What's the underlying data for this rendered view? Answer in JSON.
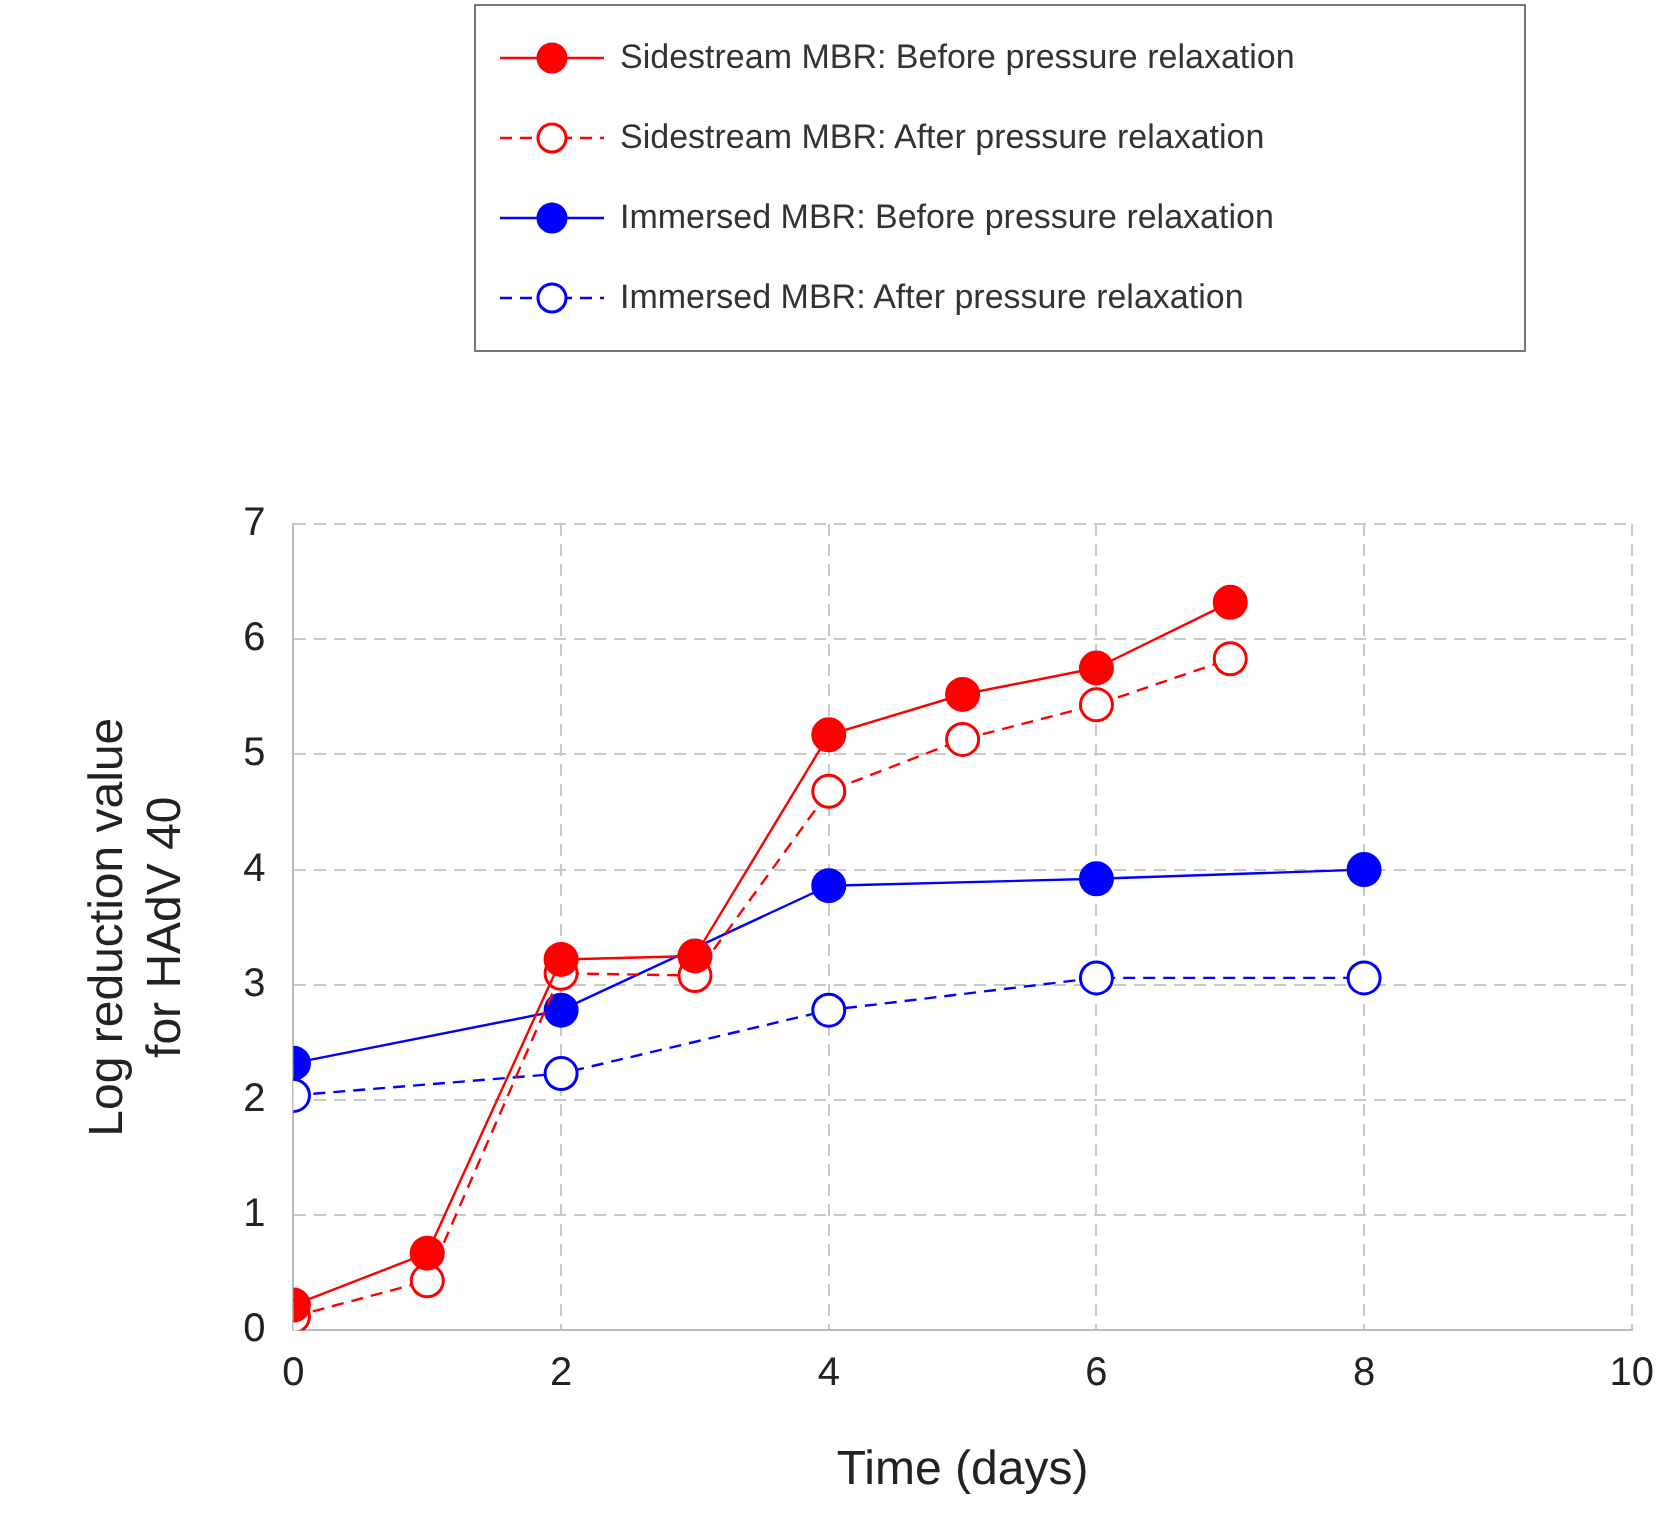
{
  "chart_data": {
    "type": "line",
    "xlabel": "Time (days)",
    "ylabel": "Log reduction value\nfor HAdV 40",
    "xlim": [
      0,
      10
    ],
    "xticks": [
      0,
      2,
      4,
      6,
      8,
      10
    ],
    "ylim": [
      0,
      7
    ],
    "yticks": [
      0,
      1,
      2,
      3,
      4,
      5,
      6,
      7
    ],
    "grid": true,
    "legend": "top",
    "marker": "circle",
    "series": [
      {
        "name": "Sidestream MBR: Before pressure relaxation",
        "color": "#ff0000",
        "line_style": "solid",
        "x": [
          0,
          1,
          2,
          3,
          4,
          5,
          6,
          7
        ],
        "values": [
          0.22,
          0.67,
          3.22,
          3.25,
          5.17,
          5.52,
          5.75,
          6.32
        ]
      },
      {
        "name": "Sidestream MBR: After pressure relaxation",
        "color": "#ff0000",
        "line_style": "dashed",
        "x": [
          0,
          1,
          2,
          3,
          4,
          5,
          6,
          7
        ],
        "values": [
          0.12,
          0.43,
          3.1,
          3.08,
          4.68,
          5.13,
          5.43,
          5.83
        ]
      },
      {
        "name": "Immersed MBR: Before pressure relaxation",
        "color": "#0000ff",
        "line_style": "solid",
        "x": [
          0,
          2,
          4,
          6,
          8
        ],
        "values": [
          2.32,
          2.78,
          3.86,
          3.92,
          4.0
        ]
      },
      {
        "name": "Immersed MBR: After pressure relaxation",
        "color": "#0000ff",
        "line_style": "dashed",
        "x": [
          0,
          2,
          4,
          6,
          8
        ],
        "values": [
          2.04,
          2.23,
          2.78,
          3.06,
          3.06
        ]
      }
    ]
  }
}
